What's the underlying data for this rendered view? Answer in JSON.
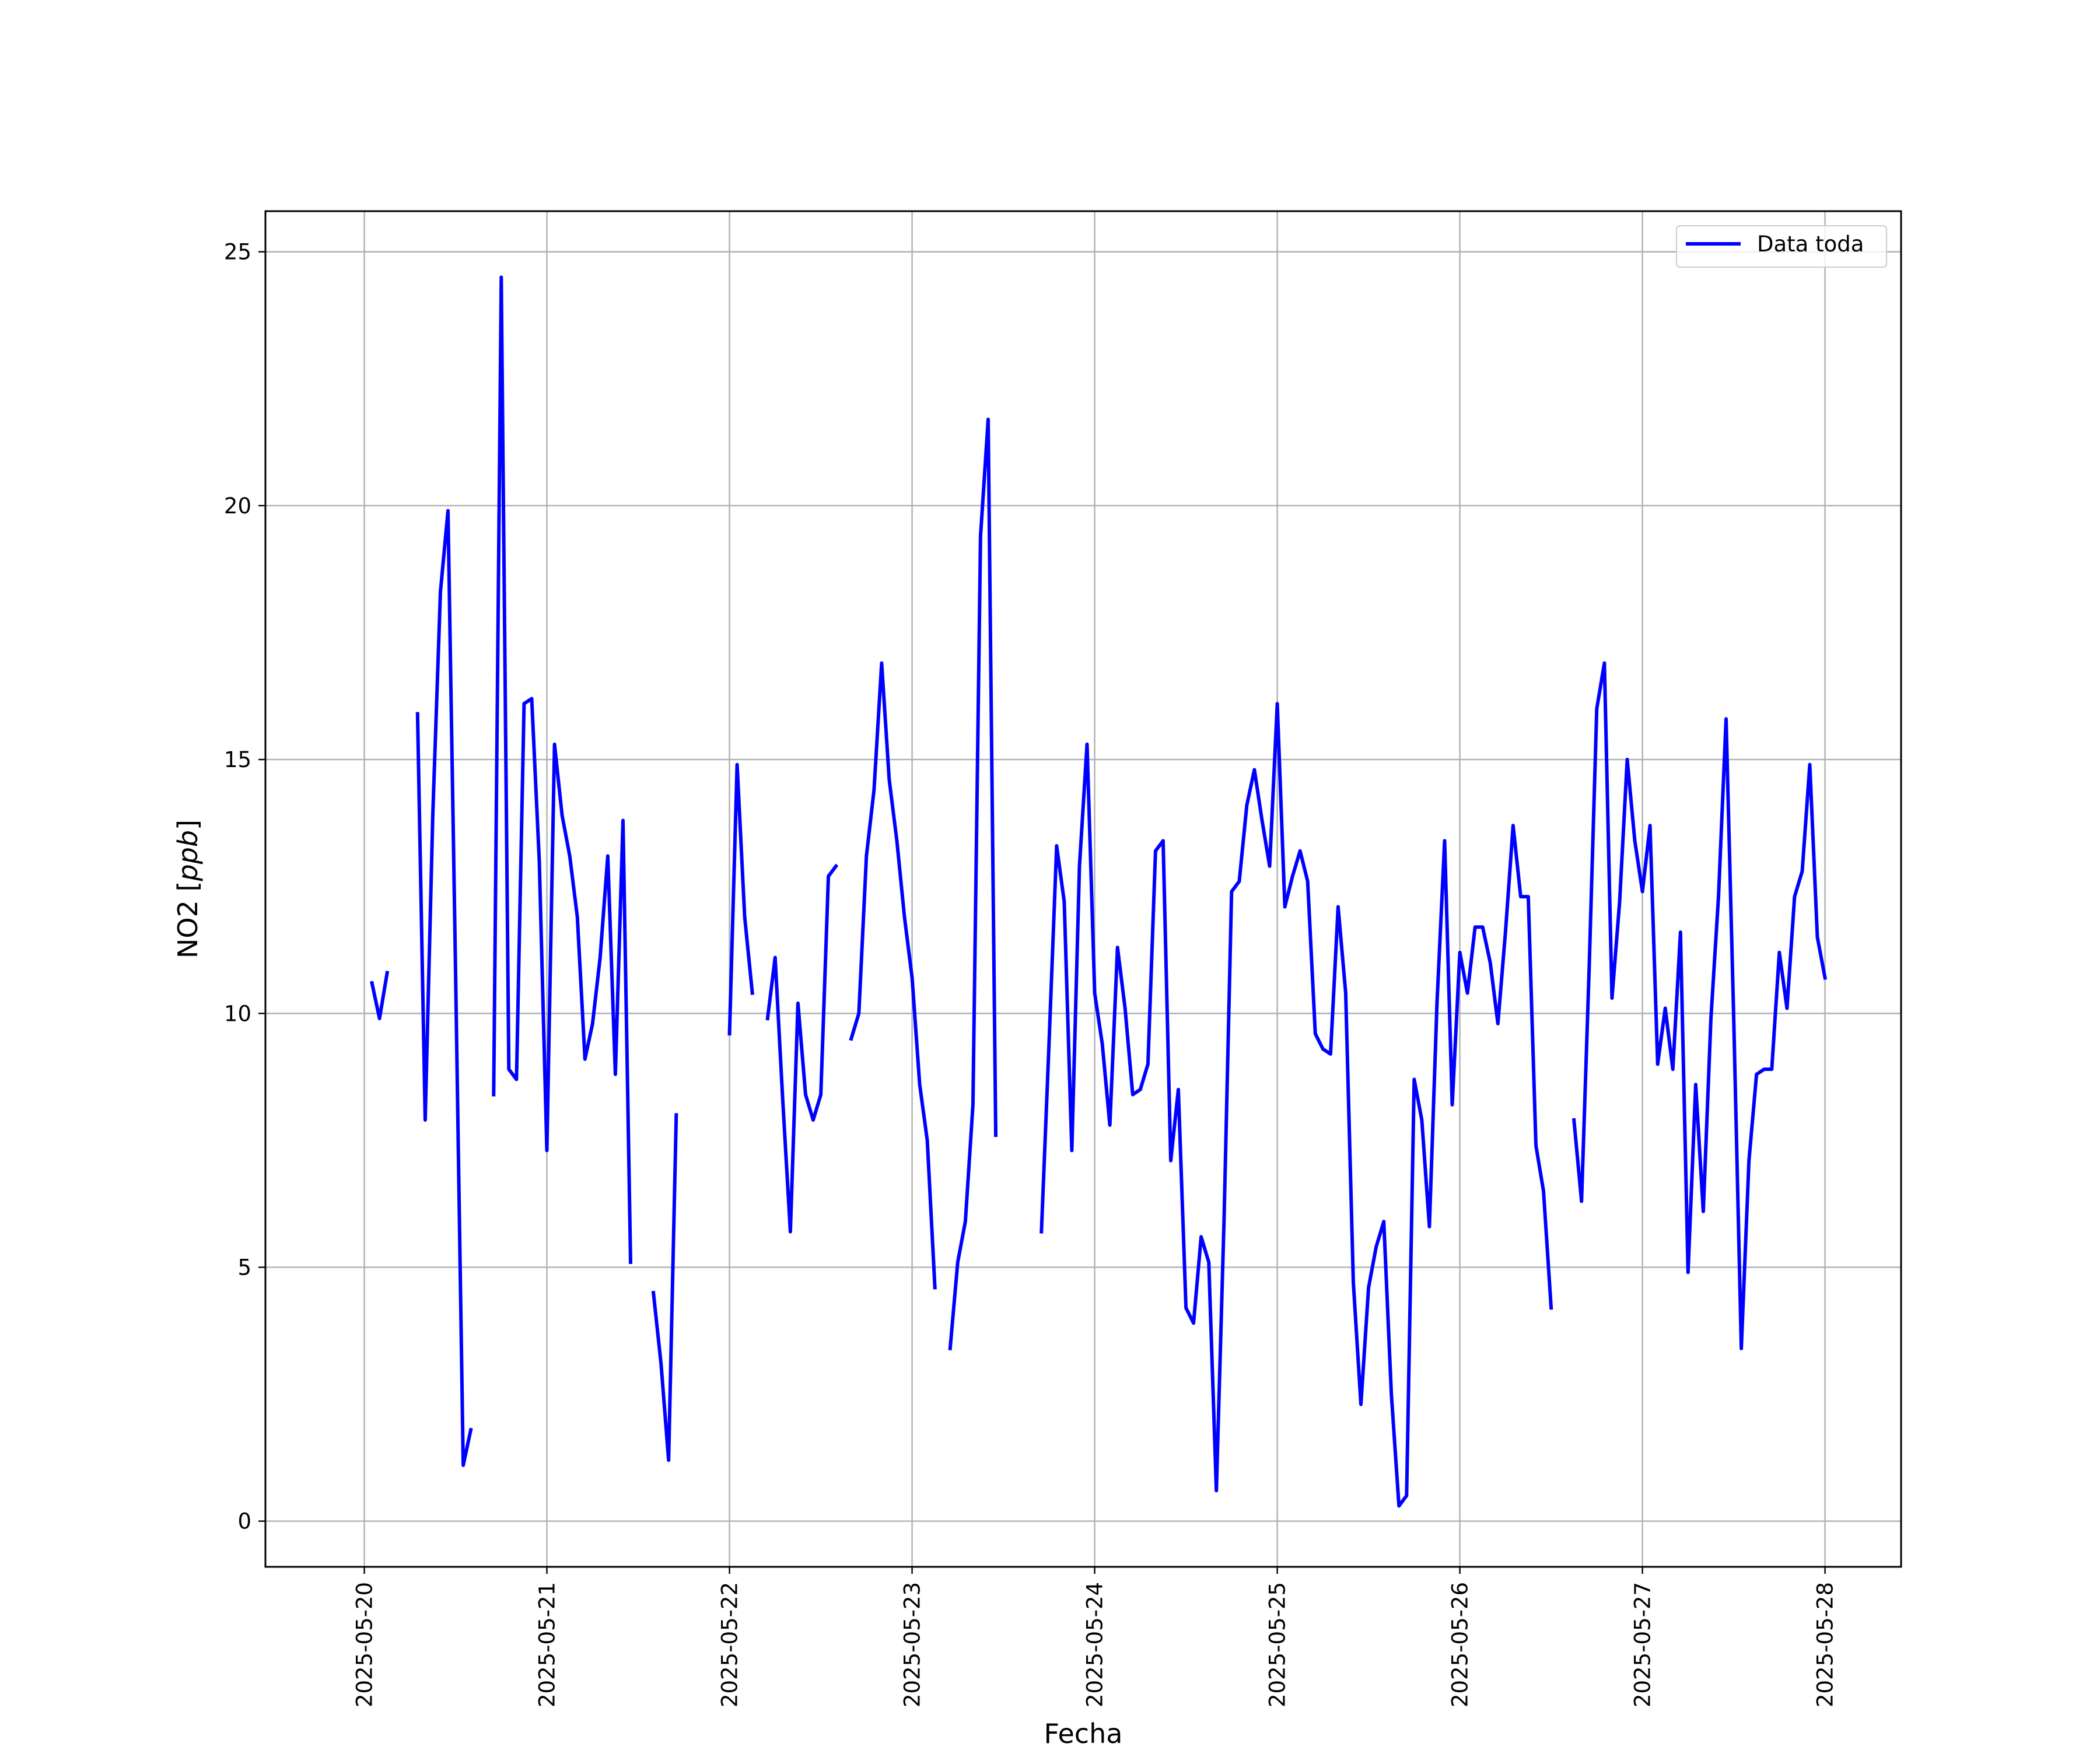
{
  "chart_data": {
    "type": "line",
    "title": "",
    "xlabel": "Fecha",
    "ylabel_text": "NO2 ",
    "ylabel_unit": "ppb",
    "x_is_date": true,
    "x_ticks": [
      "2025-05-20",
      "2025-05-21",
      "2025-05-22",
      "2025-05-23",
      "2025-05-24",
      "2025-05-25",
      "2025-05-26",
      "2025-05-27",
      "2025-05-28"
    ],
    "y_ticks": [
      0,
      5,
      10,
      15,
      20,
      25
    ],
    "xlim": [
      "2025-05-19T11:00",
      "2025-05-28T10:00"
    ],
    "ylim": [
      -0.9,
      25.8
    ],
    "grid": true,
    "legend_position": "top-right",
    "colors": {
      "series": "#0000ff",
      "grid": "#b0b0b0",
      "axes": "#000000"
    },
    "series": [
      {
        "name": "Data toda",
        "points": [
          [
            "2025-05-20T01:00",
            10.6
          ],
          [
            "2025-05-20T02:00",
            9.9
          ],
          [
            "2025-05-20T03:00",
            10.8
          ],
          [
            "2025-05-20T04:00",
            null
          ],
          [
            "2025-05-20T07:00",
            15.9
          ],
          [
            "2025-05-20T08:00",
            7.9
          ],
          [
            "2025-05-20T09:00",
            13.9
          ],
          [
            "2025-05-20T10:00",
            18.3
          ],
          [
            "2025-05-20T11:00",
            19.9
          ],
          [
            "2025-05-20T12:00",
            10.8
          ],
          [
            "2025-05-20T13:00",
            1.1
          ],
          [
            "2025-05-20T14:00",
            1.8
          ],
          [
            "2025-05-20T15:00",
            null
          ],
          [
            "2025-05-20T17:00",
            8.4
          ],
          [
            "2025-05-20T18:00",
            24.5
          ],
          [
            "2025-05-20T19:00",
            8.9
          ],
          [
            "2025-05-20T20:00",
            8.7
          ],
          [
            "2025-05-20T21:00",
            16.1
          ],
          [
            "2025-05-20T22:00",
            16.2
          ],
          [
            "2025-05-20T23:00",
            13.0
          ],
          [
            "2025-05-21T00:00",
            7.3
          ],
          [
            "2025-05-21T01:00",
            15.3
          ],
          [
            "2025-05-21T02:00",
            13.9
          ],
          [
            "2025-05-21T03:00",
            13.1
          ],
          [
            "2025-05-21T04:00",
            11.9
          ],
          [
            "2025-05-21T05:00",
            9.1
          ],
          [
            "2025-05-21T06:00",
            9.8
          ],
          [
            "2025-05-21T07:00",
            11.1
          ],
          [
            "2025-05-21T08:00",
            13.1
          ],
          [
            "2025-05-21T09:00",
            8.8
          ],
          [
            "2025-05-21T10:00",
            13.8
          ],
          [
            "2025-05-21T11:00",
            5.1
          ],
          [
            "2025-05-21T12:00",
            null
          ],
          [
            "2025-05-21T14:00",
            4.5
          ],
          [
            "2025-05-21T15:00",
            3.1
          ],
          [
            "2025-05-21T16:00",
            1.2
          ],
          [
            "2025-05-21T17:00",
            8.0
          ],
          [
            "2025-05-21T18:00",
            null
          ],
          [
            "2025-05-22T00:00",
            9.6
          ],
          [
            "2025-05-22T01:00",
            14.9
          ],
          [
            "2025-05-22T02:00",
            11.9
          ],
          [
            "2025-05-22T03:00",
            10.4
          ],
          [
            "2025-05-22T04:00",
            null
          ],
          [
            "2025-05-22T05:00",
            9.9
          ],
          [
            "2025-05-22T06:00",
            11.1
          ],
          [
            "2025-05-22T07:00",
            8.3
          ],
          [
            "2025-05-22T08:00",
            5.7
          ],
          [
            "2025-05-22T09:00",
            10.2
          ],
          [
            "2025-05-22T10:00",
            8.4
          ],
          [
            "2025-05-22T11:00",
            7.9
          ],
          [
            "2025-05-22T12:00",
            8.4
          ],
          [
            "2025-05-22T13:00",
            12.7
          ],
          [
            "2025-05-22T14:00",
            12.9
          ],
          [
            "2025-05-22T15:00",
            null
          ],
          [
            "2025-05-22T16:00",
            9.5
          ],
          [
            "2025-05-22T17:00",
            10.0
          ],
          [
            "2025-05-22T18:00",
            13.1
          ],
          [
            "2025-05-22T19:00",
            14.4
          ],
          [
            "2025-05-22T20:00",
            16.9
          ],
          [
            "2025-05-22T21:00",
            14.6
          ],
          [
            "2025-05-22T22:00",
            13.4
          ],
          [
            "2025-05-22T23:00",
            11.9
          ],
          [
            "2025-05-23T00:00",
            10.7
          ],
          [
            "2025-05-23T01:00",
            8.6
          ],
          [
            "2025-05-23T02:00",
            7.5
          ],
          [
            "2025-05-23T03:00",
            4.6
          ],
          [
            "2025-05-23T04:00",
            null
          ],
          [
            "2025-05-23T05:00",
            3.4
          ],
          [
            "2025-05-23T06:00",
            5.1
          ],
          [
            "2025-05-23T07:00",
            5.9
          ],
          [
            "2025-05-23T08:00",
            8.2
          ],
          [
            "2025-05-23T09:00",
            19.4
          ],
          [
            "2025-05-23T10:00",
            21.7
          ],
          [
            "2025-05-23T11:00",
            7.6
          ],
          [
            "2025-05-23T12:00",
            null
          ],
          [
            "2025-05-23T17:00",
            5.7
          ],
          [
            "2025-05-23T18:00",
            9.4
          ],
          [
            "2025-05-23T19:00",
            13.3
          ],
          [
            "2025-05-23T20:00",
            12.2
          ],
          [
            "2025-05-23T21:00",
            7.3
          ],
          [
            "2025-05-23T22:00",
            12.9
          ],
          [
            "2025-05-23T23:00",
            15.3
          ],
          [
            "2025-05-24T00:00",
            10.4
          ],
          [
            "2025-05-24T01:00",
            9.4
          ],
          [
            "2025-05-24T02:00",
            7.8
          ],
          [
            "2025-05-24T03:00",
            11.3
          ],
          [
            "2025-05-24T04:00",
            10.1
          ],
          [
            "2025-05-24T05:00",
            8.4
          ],
          [
            "2025-05-24T06:00",
            8.5
          ],
          [
            "2025-05-24T07:00",
            9.0
          ],
          [
            "2025-05-24T08:00",
            13.2
          ],
          [
            "2025-05-24T09:00",
            13.4
          ],
          [
            "2025-05-24T10:00",
            7.1
          ],
          [
            "2025-05-24T11:00",
            8.5
          ],
          [
            "2025-05-24T12:00",
            4.2
          ],
          [
            "2025-05-24T13:00",
            3.9
          ],
          [
            "2025-05-24T14:00",
            5.6
          ],
          [
            "2025-05-24T15:00",
            5.1
          ],
          [
            "2025-05-24T16:00",
            0.6
          ],
          [
            "2025-05-24T17:00",
            5.9
          ],
          [
            "2025-05-24T18:00",
            12.4
          ],
          [
            "2025-05-24T19:00",
            12.6
          ],
          [
            "2025-05-24T20:00",
            14.1
          ],
          [
            "2025-05-24T21:00",
            14.8
          ],
          [
            "2025-05-24T22:00",
            13.8
          ],
          [
            "2025-05-24T23:00",
            12.9
          ],
          [
            "2025-05-25T00:00",
            16.1
          ],
          [
            "2025-05-25T01:00",
            12.1
          ],
          [
            "2025-05-25T02:00",
            12.7
          ],
          [
            "2025-05-25T03:00",
            13.2
          ],
          [
            "2025-05-25T04:00",
            12.6
          ],
          [
            "2025-05-25T05:00",
            9.6
          ],
          [
            "2025-05-25T06:00",
            9.3
          ],
          [
            "2025-05-25T07:00",
            9.2
          ],
          [
            "2025-05-25T08:00",
            12.1
          ],
          [
            "2025-05-25T09:00",
            10.4
          ],
          [
            "2025-05-25T10:00",
            4.7
          ],
          [
            "2025-05-25T11:00",
            2.3
          ],
          [
            "2025-05-25T12:00",
            4.6
          ],
          [
            "2025-05-25T13:00",
            5.4
          ],
          [
            "2025-05-25T14:00",
            5.9
          ],
          [
            "2025-05-25T15:00",
            2.5
          ],
          [
            "2025-05-25T16:00",
            0.3
          ],
          [
            "2025-05-25T17:00",
            0.5
          ],
          [
            "2025-05-25T18:00",
            8.7
          ],
          [
            "2025-05-25T19:00",
            7.9
          ],
          [
            "2025-05-25T20:00",
            5.8
          ],
          [
            "2025-05-25T21:00",
            10.2
          ],
          [
            "2025-05-25T22:00",
            13.4
          ],
          [
            "2025-05-25T23:00",
            8.2
          ],
          [
            "2025-05-26T00:00",
            11.2
          ],
          [
            "2025-05-26T01:00",
            10.4
          ],
          [
            "2025-05-26T02:00",
            11.7
          ],
          [
            "2025-05-26T03:00",
            11.7
          ],
          [
            "2025-05-26T04:00",
            11.0
          ],
          [
            "2025-05-26T05:00",
            9.8
          ],
          [
            "2025-05-26T06:00",
            11.6
          ],
          [
            "2025-05-26T07:00",
            13.7
          ],
          [
            "2025-05-26T08:00",
            12.3
          ],
          [
            "2025-05-26T09:00",
            12.3
          ],
          [
            "2025-05-26T10:00",
            7.4
          ],
          [
            "2025-05-26T11:00",
            6.5
          ],
          [
            "2025-05-26T12:00",
            4.2
          ],
          [
            "2025-05-26T13:00",
            null
          ],
          [
            "2025-05-26T15:00",
            7.9
          ],
          [
            "2025-05-26T16:00",
            6.3
          ],
          [
            "2025-05-26T17:00",
            10.9
          ],
          [
            "2025-05-26T18:00",
            16.0
          ],
          [
            "2025-05-26T19:00",
            16.9
          ],
          [
            "2025-05-26T20:00",
            10.3
          ],
          [
            "2025-05-26T21:00",
            12.2
          ],
          [
            "2025-05-26T22:00",
            15.0
          ],
          [
            "2025-05-26T23:00",
            13.4
          ],
          [
            "2025-05-27T00:00",
            12.4
          ],
          [
            "2025-05-27T01:00",
            13.7
          ],
          [
            "2025-05-27T02:00",
            9.0
          ],
          [
            "2025-05-27T03:00",
            10.1
          ],
          [
            "2025-05-27T04:00",
            8.9
          ],
          [
            "2025-05-27T05:00",
            11.6
          ],
          [
            "2025-05-27T06:00",
            4.9
          ],
          [
            "2025-05-27T07:00",
            8.6
          ],
          [
            "2025-05-27T08:00",
            6.1
          ],
          [
            "2025-05-27T09:00",
            9.9
          ],
          [
            "2025-05-27T10:00",
            12.3
          ],
          [
            "2025-05-27T11:00",
            15.8
          ],
          [
            "2025-05-27T12:00",
            9.9
          ],
          [
            "2025-05-27T13:00",
            3.4
          ],
          [
            "2025-05-27T14:00",
            7.1
          ],
          [
            "2025-05-27T15:00",
            8.8
          ],
          [
            "2025-05-27T16:00",
            8.9
          ],
          [
            "2025-05-27T17:00",
            8.9
          ],
          [
            "2025-05-27T18:00",
            11.2
          ],
          [
            "2025-05-27T19:00",
            10.1
          ],
          [
            "2025-05-27T20:00",
            12.3
          ],
          [
            "2025-05-27T21:00",
            12.8
          ],
          [
            "2025-05-27T22:00",
            14.9
          ],
          [
            "2025-05-27T23:00",
            11.5
          ],
          [
            "2025-05-28T00:00",
            10.7
          ]
        ]
      }
    ]
  }
}
